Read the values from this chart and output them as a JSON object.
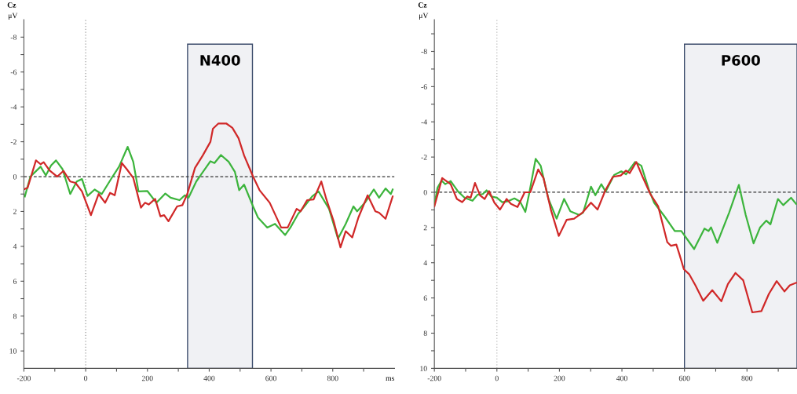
{
  "chart_data": [
    {
      "type": "line",
      "title": "Cz",
      "ylabel": "μV",
      "xlabel": "ms",
      "xlim": [
        -200,
        1000
      ],
      "xticks": [
        -200,
        {
          "value": -100,
          "label": null
        },
        0,
        {
          "value": 100,
          "label": null
        },
        200,
        {
          "value": 300,
          "label": null
        },
        400,
        {
          "value": 500,
          "label": null
        },
        600,
        {
          "value": 700,
          "label": null
        },
        800,
        {
          "value": 900,
          "label": null
        }
      ],
      "ylim": [
        11,
        -9
      ],
      "yticks": [
        -8,
        {
          "value": -7,
          "label": null
        },
        -6,
        {
          "value": -5,
          "label": null
        },
        -4,
        {
          "value": -3,
          "label": null
        },
        -2,
        {
          "value": -1,
          "label": null
        },
        0,
        {
          "value": 1,
          "label": null
        },
        2,
        {
          "value": 3,
          "label": null
        },
        4,
        {
          "value": 5,
          "label": null
        },
        6,
        {
          "value": 7,
          "label": null
        },
        8,
        {
          "value": 9,
          "label": null
        },
        10
      ],
      "grid": false,
      "marker": "none",
      "line_style": "solid",
      "bands": [
        {
          "axis": "x",
          "from": 330,
          "to": 540,
          "label": "N400",
          "color": "#f0f1f4"
        }
      ],
      "ref_lines": [
        {
          "axis": "x",
          "value": 0,
          "color": "#999999",
          "line_style": "dotted"
        },
        {
          "axis": "y",
          "value": 0,
          "color": "#333333",
          "line_style": "dashed"
        }
      ],
      "series": [
        {
          "color": "#3cb43c",
          "x": [
            -197,
            -179,
            -167,
            -146,
            -129,
            -112,
            -96,
            -75,
            -50,
            -29,
            -12,
            6,
            29,
            52,
            87,
            108,
            136,
            154,
            171,
            200,
            229,
            258,
            275,
            304,
            321,
            333,
            358,
            404,
            417,
            438,
            463,
            483,
            497,
            513,
            542,
            558,
            588,
            613,
            646,
            663,
            688,
            708,
            733,
            754,
            788,
            817,
            842,
            867,
            879,
            904,
            933,
            950,
            971,
            988,
            994
          ],
          "values": [
            1.14,
            0,
            -0.21,
            -0.57,
            -0.07,
            -0.64,
            -0.93,
            -0.43,
            1.0,
            0.28,
            0.14,
            1.11,
            0.74,
            1.0,
            0,
            -0.57,
            -1.71,
            -0.85,
            0.85,
            0.83,
            1.5,
            0.97,
            1.21,
            1.35,
            1.07,
            1.21,
            0.28,
            -0.88,
            -0.78,
            -1.24,
            -0.85,
            -0.28,
            0.78,
            0.46,
            1.71,
            2.35,
            2.92,
            2.71,
            3.35,
            2.92,
            2.14,
            1.71,
            1.14,
            0.85,
            1.85,
            3.56,
            2.71,
            1.71,
            1.99,
            1.5,
            0.74,
            1.21,
            0.68,
            1.0,
            0.74
          ]
        },
        {
          "color": "#d02828",
          "x": [
            -197,
            -188,
            -161,
            -146,
            -136,
            -117,
            -92,
            -72,
            -50,
            -33,
            -12,
            17,
            42,
            63,
            79,
            94,
            117,
            133,
            154,
            179,
            192,
            204,
            225,
            242,
            254,
            268,
            296,
            313,
            329,
            354,
            379,
            404,
            412,
            430,
            455,
            475,
            495,
            513,
            542,
            563,
            596,
            633,
            654,
            683,
            696,
            717,
            738,
            763,
            779,
            803,
            825,
            842,
            863,
            883,
            913,
            938,
            950,
            971,
            994
          ],
          "values": [
            0.71,
            0.64,
            -0.93,
            -0.71,
            -0.83,
            -0.36,
            0,
            -0.33,
            0.28,
            0.36,
            0.85,
            2.21,
            1.0,
            1.5,
            0.93,
            1.07,
            -0.78,
            -0.43,
            0.07,
            1.78,
            1.5,
            1.6,
            1.28,
            2.28,
            2.21,
            2.56,
            1.71,
            1.64,
            1.0,
            -0.5,
            -1.21,
            -2.0,
            -2.75,
            -3.05,
            -3.05,
            -2.8,
            -2.2,
            -1.21,
            0,
            0.78,
            1.5,
            2.92,
            2.92,
            1.85,
            1.99,
            1.35,
            1.31,
            0.28,
            1.28,
            2.56,
            4.06,
            3.13,
            3.49,
            2.35,
            1.07,
            1.99,
            2.07,
            2.42,
            1.14
          ]
        }
      ]
    },
    {
      "type": "line",
      "title": "Cz",
      "ylabel": "μV",
      "xlim": [
        -200,
        960
      ],
      "xticks": [
        -200,
        {
          "value": -100,
          "label": null
        },
        0,
        {
          "value": 100,
          "label": null
        },
        200,
        {
          "value": 300,
          "label": null
        },
        400,
        {
          "value": 500,
          "label": null
        },
        600,
        {
          "value": 700,
          "label": null
        },
        800,
        {
          "value": 900,
          "label": null
        }
      ],
      "ylim": [
        10,
        -9.8
      ],
      "yticks": [
        -8,
        {
          "value": -9,
          "label": null
        },
        {
          "value": -7,
          "label": null
        },
        -6,
        {
          "value": -5,
          "label": null
        },
        -4,
        {
          "value": -3,
          "label": null
        },
        -2,
        {
          "value": -1,
          "label": null
        },
        0,
        {
          "value": 1,
          "label": null
        },
        2,
        {
          "value": 3,
          "label": null
        },
        4,
        {
          "value": 5,
          "label": null
        },
        6,
        {
          "value": 7,
          "label": null
        },
        8,
        {
          "value": 9,
          "label": null
        },
        10
      ],
      "grid": false,
      "marker": "none",
      "line_style": "solid",
      "bands": [
        {
          "axis": "x",
          "from": 600,
          "to": 960,
          "label": "P600",
          "color": "#f0f1f4"
        }
      ],
      "ref_lines": [
        {
          "axis": "x",
          "value": 0,
          "color": "#bbbbbb",
          "line_style": "dotted"
        },
        {
          "axis": "y",
          "value": 0,
          "color": "#333333",
          "line_style": "dashed"
        }
      ],
      "series": [
        {
          "color": "#3cb43c",
          "x": [
            -200,
            -190,
            -177,
            -165,
            -148,
            -124,
            -103,
            -78,
            -62,
            -45,
            -33,
            -18,
            0,
            17,
            33,
            56,
            74,
            91,
            103,
            124,
            140,
            165,
            191,
            215,
            235,
            264,
            276,
            301,
            315,
            334,
            348,
            375,
            398,
            413,
            442,
            462,
            487,
            503,
            536,
            569,
            590,
            631,
            664,
            677,
            685,
            705,
            743,
            774,
            796,
            821,
            842,
            862,
            875,
            899,
            916,
            941,
            957
          ],
          "values": [
            0.73,
            -0.25,
            -0.67,
            -0.46,
            -0.64,
            -0.04,
            0.31,
            0.48,
            0.14,
            0.1,
            -0.11,
            0.24,
            0.31,
            0.56,
            0.52,
            0.35,
            0.52,
            1.12,
            0.1,
            -1.9,
            -1.51,
            0.38,
            1.5,
            0.38,
            1.08,
            1.29,
            1.15,
            -0.32,
            0.17,
            -0.46,
            -0.04,
            -0.98,
            -1.19,
            -1.02,
            -1.72,
            -1.51,
            -0.11,
            0.59,
            1.36,
            2.2,
            2.2,
            3.22,
            2.06,
            2.2,
            1.99,
            2.87,
            1.15,
            -0.42,
            1.29,
            2.9,
            1.99,
            1.61,
            1.82,
            0.38,
            0.73,
            0.31,
            0.66
          ]
        },
        {
          "color": "#d02828",
          "x": [
            -200,
            -175,
            -148,
            -128,
            -111,
            -95,
            -84,
            -70,
            -54,
            -39,
            -25,
            -8,
            10,
            31,
            45,
            66,
            89,
            107,
            132,
            149,
            173,
            198,
            223,
            247,
            274,
            301,
            322,
            347,
            371,
            396,
            413,
            425,
            446,
            466,
            491,
            516,
            545,
            557,
            574,
            584,
            598,
            615,
            635,
            660,
            689,
            718,
            739,
            763,
            788,
            817,
            846,
            870,
            895,
            920,
            937,
            957
          ],
          "values": [
            0.8,
            -0.81,
            -0.46,
            0.38,
            0.56,
            0.24,
            0.31,
            -0.53,
            0.17,
            0.38,
            -0.07,
            0.59,
            0.98,
            0.38,
            0.66,
            0.84,
            0,
            0,
            -1.3,
            -0.81,
            1.01,
            2.48,
            1.57,
            1.5,
            1.15,
            0.59,
            0.98,
            -0.11,
            -0.88,
            -0.95,
            -1.23,
            -1.09,
            -1.72,
            -0.88,
            0.1,
            0.8,
            2.83,
            3.04,
            2.97,
            3.53,
            4.37,
            4.65,
            5.28,
            6.16,
            5.56,
            6.19,
            5.21,
            4.58,
            5.0,
            6.82,
            6.75,
            5.77,
            5.04,
            5.63,
            5.28,
            5.14
          ]
        }
      ]
    }
  ]
}
